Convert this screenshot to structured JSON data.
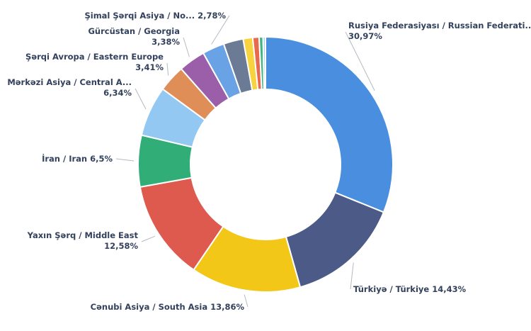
{
  "chart_data": {
    "type": "pie",
    "variant": "donut",
    "legend": "none",
    "slices": [
      {
        "line1": "Rusiya Federasiyası / Russian Federati...",
        "line2": "30,97%",
        "value": 30.97,
        "color": "#4a8fdf"
      },
      {
        "line1": "Türkiyə / Türkiye 14,43%",
        "value": 14.43,
        "color": "#4b5a86"
      },
      {
        "line1": "Cənubi Asiya / South Asia 13,86%",
        "value": 13.86,
        "color": "#f2c718"
      },
      {
        "line1": "Yaxın Şərq / Middle East",
        "line2": "12,58%",
        "value": 12.58,
        "color": "#de5a4f"
      },
      {
        "line1": "İran / Iran 6,5%",
        "value": 6.5,
        "color": "#31ad77"
      },
      {
        "line1": "Mərkəzi Asiya / Central A...",
        "line2": "6,34%",
        "value": 6.34,
        "color": "#93c8f2"
      },
      {
        "line1": "Şərqi Avropa / Eastern Europe",
        "line2": "3,41%",
        "value": 3.41,
        "color": "#e08e57"
      },
      {
        "line1": "Gürcüstan / Georgia",
        "line2": "3,38%",
        "value": 3.38,
        "color": "#9a5fa8"
      },
      {
        "line1": "Şimal Şərqi Asiya / No... 2,78%",
        "value": 2.78,
        "color": "#6aa2e6"
      },
      {
        "value": 2.5,
        "color": "#6c7b95"
      },
      {
        "value": 1.2,
        "color": "#f6d33f"
      },
      {
        "value": 0.8,
        "color": "#e8694e"
      },
      {
        "value": 0.5,
        "color": "#3fb780"
      },
      {
        "value": 0.3,
        "color": "#9ed2f4"
      }
    ]
  }
}
